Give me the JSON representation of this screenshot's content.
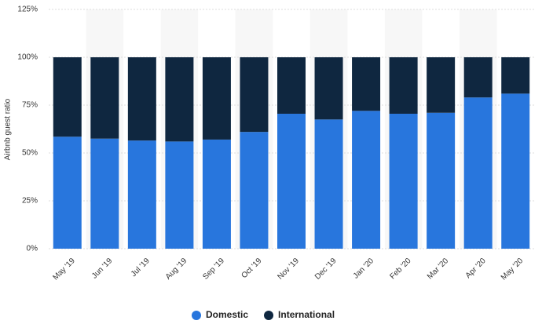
{
  "chart_data": {
    "type": "stacked-bar",
    "y_label": "Airbnb guest ratio",
    "categories": [
      "May '19",
      "Jun '19",
      "Jul '19",
      "Aug '19",
      "Sep '19",
      "Oct '19",
      "Nov '19",
      "Dec '19",
      "Jan '20",
      "Feb '20",
      "Mar '20",
      "Apr '20",
      "May '20"
    ],
    "series": [
      {
        "name": "Domestic",
        "color": "#2876dd",
        "values": [
          58.5,
          57.5,
          56.5,
          56,
          57,
          61,
          70.5,
          67.5,
          72,
          70.5,
          71,
          79,
          81
        ]
      },
      {
        "name": "International",
        "color": "#0f2740",
        "values": [
          41.5,
          42.5,
          43.5,
          44,
          43,
          39,
          29.5,
          32.5,
          28,
          29.5,
          29,
          21,
          19
        ]
      }
    ],
    "ylim": [
      0,
      125
    ],
    "yticks": [
      {
        "value": 0,
        "label": "0%"
      },
      {
        "value": 25,
        "label": "25%"
      },
      {
        "value": 50,
        "label": "50%"
      },
      {
        "value": 75,
        "label": "75%"
      },
      {
        "value": 100,
        "label": "100%"
      },
      {
        "value": 125,
        "label": "125%"
      }
    ],
    "grid": true
  }
}
